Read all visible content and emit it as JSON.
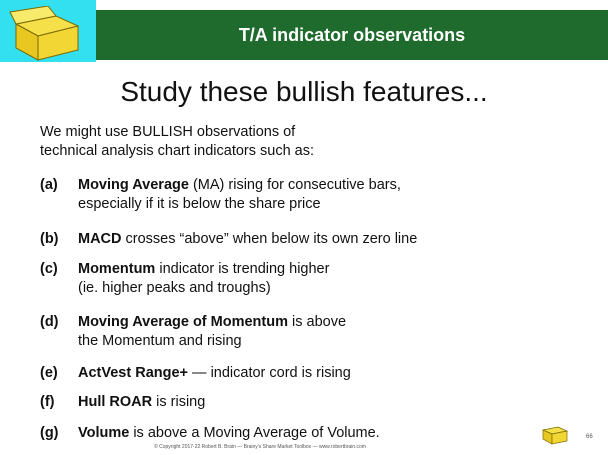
{
  "header": {
    "title": "T/A indicator observations"
  },
  "heading": "Study these bullish features...",
  "intro": [
    "We might use BULLISH observations of",
    "technical analysis chart indicators such as:"
  ],
  "items": [
    {
      "label": "(a)",
      "bold": "Moving Average",
      "rest": " (MA) rising for consecutive bars,",
      "line2": "especially if it is below the share price"
    },
    {
      "label": "(b)",
      "bold": "MACD",
      "rest": " crosses “above” when below its own zero line"
    },
    {
      "label": "(c)",
      "bold": "Momentum",
      "rest": " indicator is trending higher",
      "line2": "(ie. higher peaks and troughs)"
    },
    {
      "label": "(d)",
      "bold": "Moving Average of Momentum",
      "rest": " is above",
      "line2": "the Momentum and rising"
    },
    {
      "label": "(e)",
      "bold": "ActVest Range+",
      "rest": " — indicator cord is rising"
    },
    {
      "label": "(f)",
      "bold": "Hull ROAR",
      "rest": " is rising"
    },
    {
      "label": "(g)",
      "bold": "Volume",
      "rest": " is above a Moving Average of Volume."
    }
  ],
  "footer": "© Copyright 2017-22 Robert B. Brain — Brainy's Share Market Toolbox — www.robertbrain.com",
  "page_number": "66"
}
